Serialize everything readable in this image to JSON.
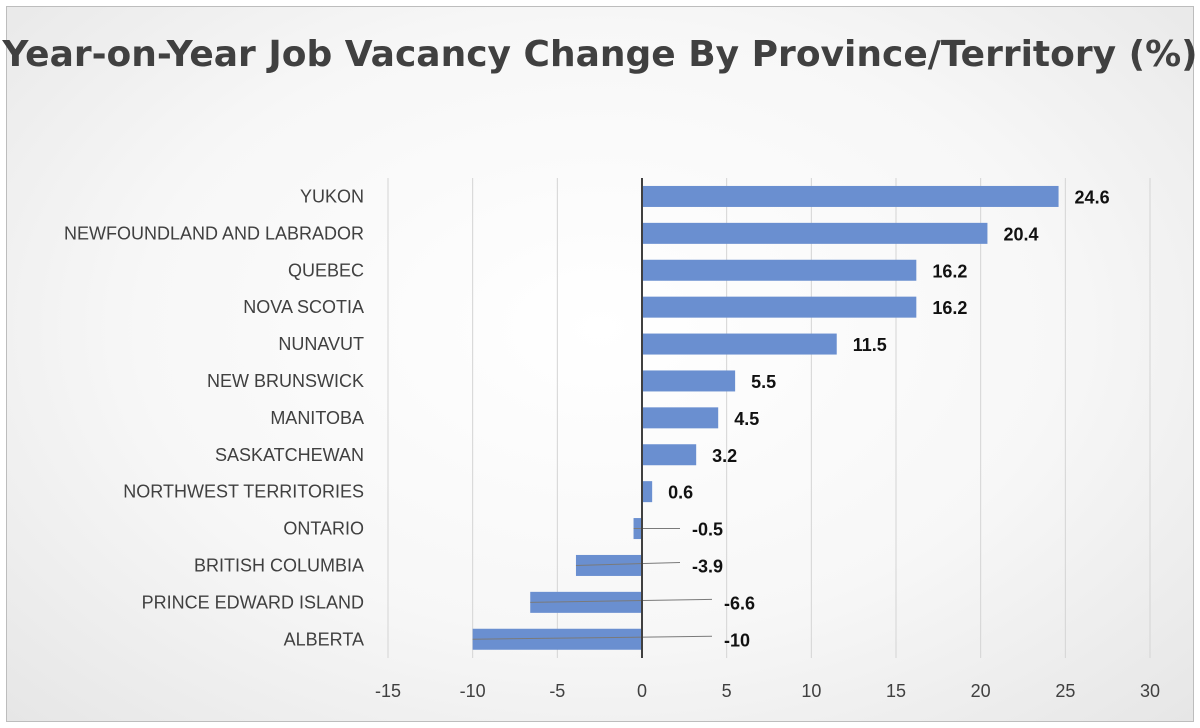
{
  "chart_data": {
    "type": "bar",
    "orientation": "horizontal",
    "title": "Year-on-Year Job Vacancy Change By Province/Territory (%)",
    "categories": [
      "YUKON",
      "NEWFOUNDLAND AND LABRADOR",
      "QUEBEC",
      "NOVA SCOTIA",
      "NUNAVUT",
      "NEW BRUNSWICK",
      "MANITOBA",
      "SASKATCHEWAN",
      "NORTHWEST TERRITORIES",
      "ONTARIO",
      "BRITISH COLUMBIA",
      "PRINCE EDWARD ISLAND",
      "ALBERTA"
    ],
    "values": [
      24.6,
      20.4,
      16.2,
      16.2,
      11.5,
      5.5,
      4.5,
      3.2,
      0.6,
      -0.5,
      -3.9,
      -6.6,
      -10
    ],
    "data_labels": [
      "24.6",
      "20.4",
      "16.2",
      "16.2",
      "11.5",
      "5.5",
      "4.5",
      "3.2",
      "0.6",
      "-0.5",
      "-3.9",
      "-6.6",
      "-10"
    ],
    "xlim": [
      -15,
      30
    ],
    "x_ticks": [
      -15,
      -10,
      -5,
      0,
      5,
      10,
      15,
      20,
      25,
      30
    ],
    "xlabel": "",
    "ylabel": "",
    "grid": "vertical",
    "legend": "none",
    "bar_color": "#6a8fd0",
    "zero_line_color": "#404040"
  }
}
